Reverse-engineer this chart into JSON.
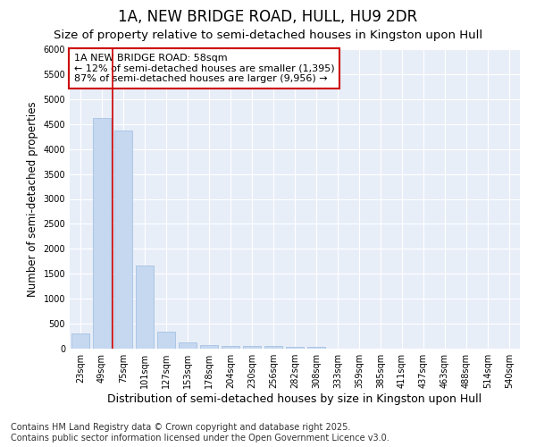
{
  "title": "1A, NEW BRIDGE ROAD, HULL, HU9 2DR",
  "subtitle": "Size of property relative to semi-detached houses in Kingston upon Hull",
  "xlabel": "Distribution of semi-detached houses by size in Kingston upon Hull",
  "ylabel": "Number of semi-detached properties",
  "categories": [
    "23sqm",
    "49sqm",
    "75sqm",
    "101sqm",
    "127sqm",
    "153sqm",
    "178sqm",
    "204sqm",
    "230sqm",
    "256sqm",
    "282sqm",
    "308sqm",
    "333sqm",
    "359sqm",
    "385sqm",
    "411sqm",
    "437sqm",
    "463sqm",
    "488sqm",
    "514sqm",
    "540sqm"
  ],
  "values": [
    300,
    4620,
    4370,
    1660,
    340,
    130,
    80,
    55,
    50,
    45,
    40,
    35,
    0,
    0,
    0,
    0,
    0,
    0,
    0,
    0,
    0
  ],
  "bar_color": "#c5d8f0",
  "bar_edge_color": "#9bbce0",
  "vline_color": "#cc0000",
  "vline_pos": 1.5,
  "ylim": [
    0,
    6000
  ],
  "yticks": [
    0,
    500,
    1000,
    1500,
    2000,
    2500,
    3000,
    3500,
    4000,
    4500,
    5000,
    5500,
    6000
  ],
  "annotation_title": "1A NEW BRIDGE ROAD: 58sqm",
  "annotation_line1": "← 12% of semi-detached houses are smaller (1,395)",
  "annotation_line2": "87% of semi-detached houses are larger (9,956) →",
  "annotation_box_facecolor": "#ffffff",
  "annotation_box_edgecolor": "#cc0000",
  "footer_line1": "Contains HM Land Registry data © Crown copyright and database right 2025.",
  "footer_line2": "Contains public sector information licensed under the Open Government Licence v3.0.",
  "fig_bg_color": "#ffffff",
  "plot_bg_color": "#e8eef8",
  "grid_color": "#ffffff",
  "title_fontsize": 12,
  "subtitle_fontsize": 9.5,
  "tick_fontsize": 7,
  "xlabel_fontsize": 9,
  "ylabel_fontsize": 8.5,
  "footer_fontsize": 7,
  "annotation_fontsize": 8
}
